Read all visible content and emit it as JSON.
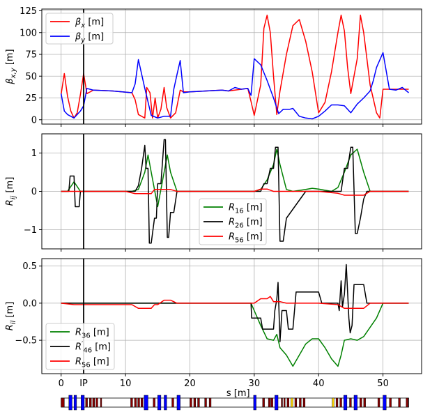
{
  "chart_data": [
    {
      "type": "line",
      "ylabel": "β_{x,y} [m]",
      "ylim": [
        -5,
        127
      ],
      "xlim": [
        -3,
        56
      ],
      "y_ticks": [
        "0",
        "25",
        "50",
        "75",
        "100",
        "125"
      ],
      "grid": true,
      "legend_placement": "top-left",
      "series": [
        {
          "name": "βx [m]",
          "color": "#ff0000",
          "x": [
            0,
            0.5,
            1,
            1.5,
            2,
            2.5,
            3,
            3.5,
            4,
            5,
            8,
            11,
            11.5,
            12,
            13,
            13.3,
            13.8,
            14.2,
            14.6,
            15,
            15.5,
            16,
            16.4,
            17,
            17.8,
            18.5,
            19,
            20,
            25,
            26,
            28,
            29,
            29.5,
            30,
            31,
            31.5,
            32,
            32.5,
            33,
            33.5,
            34,
            35,
            36,
            37,
            38,
            39,
            40,
            41,
            42,
            43,
            43.5,
            44,
            44.5,
            45,
            46,
            46.5,
            47,
            48,
            49,
            49.5,
            50,
            52,
            53,
            54
          ],
          "y": [
            29,
            53,
            27,
            10,
            2,
            8,
            29,
            53,
            30,
            34,
            33,
            31,
            23,
            6,
            2,
            37,
            31,
            2,
            25,
            2,
            12,
            37,
            14,
            2,
            8,
            34,
            32,
            32,
            34,
            33,
            35,
            36,
            21,
            5,
            40,
            105,
            120,
            100,
            50,
            6,
            33,
            75,
            108,
            115,
            90,
            55,
            8,
            20,
            55,
            100,
            120,
            102,
            60,
            30,
            70,
            120,
            100,
            40,
            8,
            2,
            35,
            35,
            35,
            35
          ]
        },
        {
          "name": "βy [m]",
          "color": "#0000ff",
          "x": [
            0,
            0.5,
            1,
            2,
            3,
            3.5,
            4,
            5,
            8,
            11,
            11.5,
            12,
            13,
            14,
            15,
            16,
            17,
            17.5,
            18,
            18.5,
            19,
            20,
            25,
            26,
            27,
            28,
            29,
            29.5,
            30,
            31,
            32,
            33,
            33.8,
            34.5,
            35.5,
            36,
            37,
            38,
            39,
            40,
            41,
            42,
            43,
            44,
            45,
            46,
            47,
            48,
            48.5,
            49,
            50,
            51,
            52,
            53,
            54
          ],
          "y": [
            30,
            10,
            6,
            2,
            10,
            16,
            36,
            34,
            33,
            31,
            41,
            69,
            36,
            5,
            2,
            4,
            4,
            35,
            52,
            68,
            31,
            32,
            34,
            33,
            37,
            35,
            36,
            28,
            70,
            63,
            45,
            25,
            7,
            12,
            12,
            13,
            4,
            2,
            1,
            4,
            10,
            17,
            17,
            16,
            8,
            18,
            25,
            33,
            45,
            60,
            77,
            35,
            34,
            37,
            31
          ]
        }
      ]
    },
    {
      "type": "line",
      "ylabel": "R_{ij} [m]",
      "ylim": [
        -1.5,
        1.5
      ],
      "xlim": [
        -3,
        56
      ],
      "y_ticks": [
        "−1",
        "0",
        "1"
      ],
      "grid": true,
      "legend_placement": "lower-center",
      "series": [
        {
          "name": "R16 [m]",
          "color": "#008000",
          "x": [
            0,
            1,
            2,
            3,
            4,
            10,
            11,
            12,
            13,
            13.5,
            14,
            15,
            16,
            16.5,
            17,
            18,
            20,
            29,
            30,
            31,
            32,
            33,
            33.5,
            34,
            35,
            36,
            38,
            39,
            40,
            42,
            43,
            44,
            45,
            46,
            47,
            48,
            54
          ],
          "y": [
            0,
            0,
            0.25,
            0,
            0,
            0,
            0,
            0.05,
            0.5,
            0.95,
            0.5,
            -0.4,
            0.5,
            0.95,
            0.5,
            0,
            0,
            0,
            0,
            0.05,
            0.3,
            0.7,
            1.1,
            0.7,
            0.05,
            0,
            0.05,
            0.08,
            0.06,
            0,
            0.1,
            0.5,
            0.95,
            1.1,
            0.5,
            0,
            0
          ]
        },
        {
          "name": "R26 [m]",
          "color": "#000000",
          "x": [
            0,
            1.2,
            1.4,
            2,
            2.2,
            2.8,
            3,
            4,
            10,
            11.5,
            12,
            12.5,
            13,
            13.2,
            13.5,
            13.7,
            14,
            14.5,
            14.8,
            15,
            15.5,
            16,
            16.2,
            16.5,
            16.7,
            17,
            17.5,
            18,
            30,
            31,
            31.5,
            32,
            32.5,
            33,
            33.3,
            33.7,
            34,
            34.5,
            35,
            38,
            43.5,
            44,
            44.5,
            45,
            45.3,
            45.7,
            46,
            46.5,
            47,
            47.5,
            54
          ],
          "y": [
            0,
            0,
            0.4,
            0.4,
            -0.4,
            -0.4,
            0,
            0,
            0,
            0,
            0.15,
            0.6,
            1.2,
            0.6,
            0.6,
            -1.35,
            -1.35,
            -0.7,
            -0.7,
            0.2,
            0.2,
            1.35,
            1.35,
            -1.2,
            -1.2,
            -0.55,
            -0.55,
            0,
            0,
            0,
            0.2,
            0.2,
            0.6,
            0.6,
            1.15,
            1.15,
            -1.3,
            -1.3,
            -0.7,
            0,
            0,
            0.6,
            0.6,
            1.15,
            1.15,
            -1.1,
            -1.1,
            -0.7,
            -0.2,
            0,
            0
          ]
        },
        {
          "name": "R56 [m]",
          "color": "#ff0000",
          "x": [
            0,
            10,
            11.5,
            12,
            14,
            14.5,
            15,
            16,
            17,
            18,
            30,
            31,
            32,
            33,
            40,
            43,
            44,
            47,
            48,
            54
          ],
          "y": [
            0,
            0,
            -0.06,
            -0.06,
            -0.06,
            0.05,
            0.05,
            0.05,
            0.05,
            0,
            0,
            0.06,
            0.06,
            0,
            0,
            -0.05,
            -0.1,
            -0.1,
            0,
            0
          ]
        }
      ]
    },
    {
      "type": "line",
      "ylabel": "R_{il} [m]",
      "ylim": [
        -0.95,
        0.6
      ],
      "xlim": [
        -3,
        56
      ],
      "x_ticks": [
        "0",
        "10",
        "20",
        "30",
        "40",
        "50"
      ],
      "xlabel": "s [m]",
      "y_ticks": [
        "−0.5",
        "0.0",
        "0.5"
      ],
      "grid": true,
      "legend_placement": "lower-left",
      "series": [
        {
          "name": "R36 [m]",
          "color": "#008000",
          "x": [
            0,
            29.5,
            30,
            31,
            32,
            33,
            33.5,
            34,
            35,
            36,
            37,
            38,
            39,
            40,
            41,
            42,
            43,
            43.5,
            44,
            45,
            46,
            47,
            49,
            50,
            54
          ],
          "y": [
            0,
            0,
            -0.1,
            -0.3,
            -0.48,
            -0.5,
            -0.42,
            -0.6,
            -0.7,
            -0.85,
            -0.7,
            -0.55,
            -0.48,
            -0.48,
            -0.6,
            -0.75,
            -0.85,
            -0.7,
            -0.5,
            -0.48,
            -0.5,
            -0.45,
            -0.2,
            0,
            0
          ]
        },
        {
          "name": "R′46 [m]",
          "color": "#000000",
          "x": [
            0,
            29.5,
            29.6,
            31,
            31.3,
            33,
            33.2,
            33.5,
            33.7,
            34,
            34.3,
            35,
            35.3,
            36,
            36.5,
            37,
            37.5,
            38,
            38.5,
            40,
            40.5,
            43,
            43.2,
            43.5,
            43.7,
            44,
            44.3,
            44.7,
            44.9,
            45.2,
            45.5,
            46,
            46.5,
            47,
            47.5,
            48,
            54
          ],
          "y": [
            0,
            0,
            -0.2,
            -0.2,
            -0.35,
            -0.35,
            -0.1,
            0.05,
            0.28,
            -0.52,
            -0.1,
            -0.1,
            -0.35,
            -0.35,
            0.15,
            0.15,
            0.15,
            0.15,
            0.15,
            0.15,
            0,
            0,
            -0.1,
            0.3,
            -0.05,
            0.12,
            0.52,
            -0.2,
            -0.4,
            -0.3,
            0.25,
            0.25,
            0.25,
            0.25,
            0,
            0,
            0
          ]
        },
        {
          "name": "R56 [m]",
          "color": "#ff0000",
          "x": [
            0,
            2,
            10,
            11,
            12,
            14,
            14.5,
            15,
            16,
            17,
            18,
            30,
            31,
            32,
            32.5,
            33,
            34,
            35,
            40,
            43,
            44,
            47,
            48,
            54
          ],
          "y": [
            0,
            -0.02,
            -0.02,
            -0.02,
            -0.07,
            -0.07,
            -0.02,
            -0.02,
            0.04,
            0.04,
            0,
            0,
            0.06,
            0.06,
            0.09,
            0.02,
            0.02,
            0,
            0,
            -0.02,
            -0.07,
            -0.07,
            0,
            0
          ]
        }
      ]
    }
  ],
  "ip_marker": {
    "s": 3.5,
    "label": "IP"
  },
  "lattice_elements": [
    {
      "s": 0,
      "len": 0.5,
      "kind": "dipole",
      "color": "#8b0000"
    },
    {
      "s": 1.2,
      "len": 0.5,
      "kind": "quad",
      "color": "#0000ff"
    },
    {
      "s": 2.0,
      "len": 0.4,
      "kind": "quad",
      "color": "#0000ff"
    },
    {
      "s": 3.1,
      "len": 0.5,
      "kind": "quad",
      "color": "#0000ff"
    },
    {
      "s": 3.8,
      "len": 0.3,
      "kind": "dipole",
      "color": "#8b0000"
    },
    {
      "s": 4.4,
      "len": 0.3,
      "kind": "dipole",
      "color": "#8b0000"
    },
    {
      "s": 4.9,
      "len": 0.3,
      "kind": "dipole",
      "color": "#8b0000"
    },
    {
      "s": 5.4,
      "len": 0.3,
      "kind": "dipole",
      "color": "#8b0000"
    },
    {
      "s": 6.1,
      "len": 0.2,
      "kind": "dipole",
      "color": "#8b0000"
    },
    {
      "s": 10.8,
      "len": 0.3,
      "kind": "dipole",
      "color": "#8b0000"
    },
    {
      "s": 11.4,
      "len": 0.3,
      "kind": "dipole",
      "color": "#8b0000"
    },
    {
      "s": 11.9,
      "len": 0.3,
      "kind": "dipole",
      "color": "#8b0000"
    },
    {
      "s": 12.4,
      "len": 0.3,
      "kind": "dipole",
      "color": "#8b0000"
    },
    {
      "s": 12.9,
      "len": 0.6,
      "kind": "quad",
      "color": "#0000ff"
    },
    {
      "s": 14.3,
      "len": 0.3,
      "kind": "dipole",
      "color": "#8b0000"
    },
    {
      "s": 15.0,
      "len": 0.5,
      "kind": "quad",
      "color": "#0000ff"
    },
    {
      "s": 16.0,
      "len": 0.4,
      "kind": "quad",
      "color": "#0000ff"
    },
    {
      "s": 17.2,
      "len": 0.3,
      "kind": "dipole",
      "color": "#8b0000"
    },
    {
      "s": 18.0,
      "len": 0.5,
      "kind": "quad",
      "color": "#0000ff"
    },
    {
      "s": 20.0,
      "len": 0.3,
      "kind": "dipole",
      "color": "#8b0000"
    },
    {
      "s": 20.6,
      "len": 0.3,
      "kind": "dipole",
      "color": "#8b0000"
    },
    {
      "s": 21.2,
      "len": 0.3,
      "kind": "dipole",
      "color": "#8b0000"
    },
    {
      "s": 22.3,
      "len": 0.3,
      "kind": "dipole",
      "color": "#8b0000"
    },
    {
      "s": 23.0,
      "len": 0.3,
      "kind": "dipole",
      "color": "#8b0000"
    },
    {
      "s": 29.9,
      "len": 0.4,
      "kind": "quad",
      "color": "#0000ff"
    },
    {
      "s": 31.3,
      "len": 0.3,
      "kind": "dipole",
      "color": "#8b0000"
    },
    {
      "s": 32.2,
      "len": 0.3,
      "kind": "dipole",
      "color": "#8b0000"
    },
    {
      "s": 32.6,
      "len": 0.3,
      "kind": "dipole",
      "color": "#8b0000"
    },
    {
      "s": 33.2,
      "len": 0.5,
      "kind": "quad",
      "color": "#0000ff"
    },
    {
      "s": 34.2,
      "len": 0.2,
      "kind": "dipole",
      "color": "#8b0000"
    },
    {
      "s": 34.6,
      "len": 0.2,
      "kind": "dipole",
      "color": "#8b0000"
    },
    {
      "s": 35.1,
      "len": 0.3,
      "kind": "dipole",
      "color": "#8b0000"
    },
    {
      "s": 35.7,
      "len": 0.3,
      "kind": "sextupole",
      "color": "#ffd700"
    },
    {
      "s": 36.3,
      "len": 0.3,
      "kind": "dipole",
      "color": "#8b0000"
    },
    {
      "s": 37.0,
      "len": 0.3,
      "kind": "dipole",
      "color": "#8b0000"
    },
    {
      "s": 37.6,
      "len": 0.3,
      "kind": "dipole",
      "color": "#8b0000"
    },
    {
      "s": 42.1,
      "len": 0.3,
      "kind": "sextupole",
      "color": "#ffd700"
    },
    {
      "s": 42.7,
      "len": 0.3,
      "kind": "dipole",
      "color": "#8b0000"
    },
    {
      "s": 43.3,
      "len": 0.3,
      "kind": "dipole",
      "color": "#8b0000"
    },
    {
      "s": 43.9,
      "len": 0.5,
      "kind": "quad",
      "color": "#0000ff"
    },
    {
      "s": 44.8,
      "len": 0.3,
      "kind": "dipole",
      "color": "#8b0000"
    },
    {
      "s": 45.5,
      "len": 0.5,
      "kind": "quad",
      "color": "#0000ff"
    },
    {
      "s": 46.4,
      "len": 0.3,
      "kind": "dipole",
      "color": "#8b0000"
    },
    {
      "s": 47.0,
      "len": 0.3,
      "kind": "dipole",
      "color": "#8b0000"
    },
    {
      "s": 49.2,
      "len": 0.3,
      "kind": "dipole",
      "color": "#8b0000"
    },
    {
      "s": 50.0,
      "len": 0.5,
      "kind": "quad",
      "color": "#0000ff"
    },
    {
      "s": 51.0,
      "len": 0.3,
      "kind": "dipole",
      "color": "#8b0000"
    },
    {
      "s": 52.4,
      "len": 0.3,
      "kind": "dipole",
      "color": "#8b0000"
    },
    {
      "s": 53.6,
      "len": 0.3,
      "kind": "dipole",
      "color": "#8b0000"
    }
  ]
}
